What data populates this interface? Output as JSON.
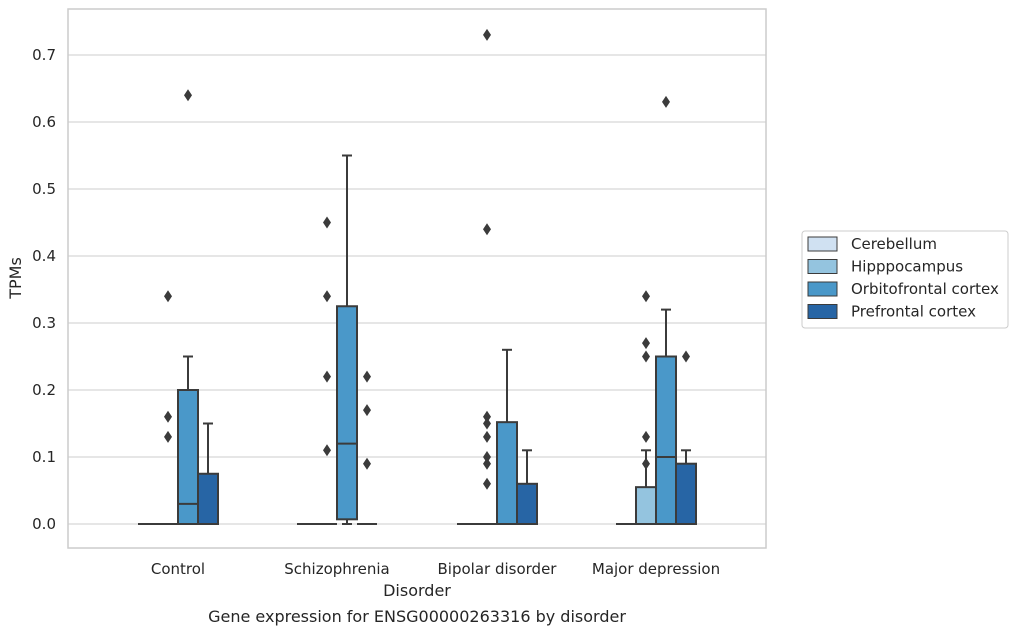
{
  "chart_data": {
    "type": "box",
    "caption": "Gene expression for ENSG00000263316 by disorder",
    "xlabel": "Disorder",
    "ylabel": "TPMs",
    "ylim": [
      -0.035,
      0.77
    ],
    "yticks": [
      "0.0",
      "0.1",
      "0.2",
      "0.3",
      "0.4",
      "0.5",
      "0.6",
      "0.7"
    ],
    "grid": true,
    "legend_position": "right",
    "categories": [
      "Control",
      "Schizophrenia",
      "Bipolar disorder",
      "Major depression"
    ],
    "series": [
      {
        "name": "Cerebellum",
        "color": "#d0e1f2",
        "boxes": [
          {
            "min": 0.0,
            "q1": 0.0,
            "median": 0.0,
            "q3": 0.0,
            "max": 0.0,
            "outliers": []
          },
          {
            "min": 0.0,
            "q1": 0.0,
            "median": 0.0,
            "q3": 0.0,
            "max": 0.0,
            "outliers": []
          },
          {
            "min": 0.0,
            "q1": 0.0,
            "median": 0.0,
            "q3": 0.0,
            "max": 0.0,
            "outliers": []
          },
          {
            "min": 0.0,
            "q1": 0.0,
            "median": 0.0,
            "q3": 0.0,
            "max": 0.0,
            "outliers": []
          }
        ]
      },
      {
        "name": "Hipppocampus",
        "color": "#94c4df",
        "boxes": [
          {
            "min": 0.0,
            "q1": 0.0,
            "median": 0.0,
            "q3": 0.0,
            "max": 0.0,
            "outliers": [
              0.13,
              0.16,
              0.34
            ]
          },
          {
            "min": 0.0,
            "q1": 0.0,
            "median": 0.0,
            "q3": 0.0,
            "max": 0.0,
            "outliers": [
              0.11,
              0.22,
              0.34,
              0.45
            ]
          },
          {
            "min": 0.0,
            "q1": 0.0,
            "median": 0.0,
            "q3": 0.0,
            "max": 0.0,
            "outliers": [
              0.06,
              0.09,
              0.1,
              0.13,
              0.15,
              0.16,
              0.44,
              0.73
            ]
          },
          {
            "min": 0.0,
            "q1": 0.0,
            "median": 0.0,
            "q3": 0.055,
            "max": 0.11,
            "outliers": [
              0.09,
              0.13,
              0.25,
              0.27,
              0.34
            ]
          }
        ]
      },
      {
        "name": "Orbitofrontal cortex",
        "color": "#4a98c9",
        "boxes": [
          {
            "min": 0.0,
            "q1": 0.0,
            "median": 0.03,
            "q3": 0.2,
            "max": 0.25,
            "outliers": [
              0.64
            ]
          },
          {
            "min": 0.0,
            "q1": 0.007,
            "median": 0.12,
            "q3": 0.325,
            "max": 0.55,
            "outliers": []
          },
          {
            "min": 0.0,
            "q1": 0.0,
            "median": 0.0,
            "q3": 0.152,
            "max": 0.26,
            "outliers": []
          },
          {
            "min": 0.0,
            "q1": 0.0,
            "median": 0.1,
            "q3": 0.25,
            "max": 0.32,
            "outliers": [
              0.63
            ]
          }
        ]
      },
      {
        "name": "Prefrontal cortex",
        "color": "#2765a5",
        "boxes": [
          {
            "min": 0.0,
            "q1": 0.0,
            "median": 0.0,
            "q3": 0.075,
            "max": 0.15,
            "outliers": []
          },
          {
            "min": 0.0,
            "q1": 0.0,
            "median": 0.0,
            "q3": 0.0,
            "max": 0.0,
            "outliers": [
              0.09,
              0.17,
              0.22
            ]
          },
          {
            "min": 0.0,
            "q1": 0.0,
            "median": 0.0,
            "q3": 0.06,
            "max": 0.11,
            "outliers": []
          },
          {
            "min": 0.0,
            "q1": 0.0,
            "median": 0.0,
            "q3": 0.09,
            "max": 0.11,
            "outliers": [
              0.25
            ]
          }
        ]
      }
    ]
  }
}
